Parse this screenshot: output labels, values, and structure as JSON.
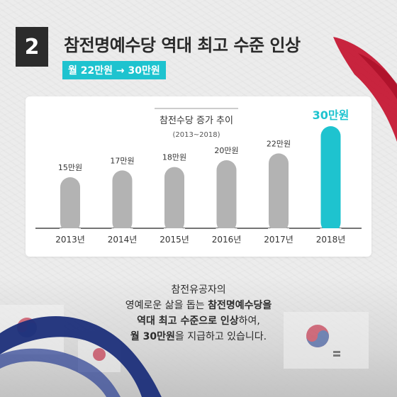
{
  "header": {
    "number": "2",
    "title": "참전명예수당 역대 최고 수준 인상",
    "subtitle": "월 22만원 → 30만원"
  },
  "colors": {
    "accent": "#1ec3cf",
    "bar": "#b3b3b3",
    "dark": "#2b2b2b",
    "red": "#c4122f"
  },
  "chart_data": {
    "type": "bar",
    "title": "참전수당 증가 추이",
    "subtitle": "(2013~2018)",
    "categories": [
      "2013년",
      "2014년",
      "2015년",
      "2016년",
      "2017년",
      "2018년"
    ],
    "values": [
      15,
      17,
      18,
      20,
      22,
      30
    ],
    "value_labels": [
      "15만원",
      "17만원",
      "18만원",
      "20만원",
      "22만원",
      "30만원"
    ],
    "highlight_index": 5,
    "ylim": [
      0,
      30
    ],
    "grid": false,
    "legend": "none"
  },
  "body": {
    "line1": "참전유공자의",
    "line2_normal": "영예로운 삶을 돕는 ",
    "line2_bold": "참전명예수당을",
    "line3_bold": "역대 최고 수준으로 인상",
    "line3_normal": "하여,",
    "line4_bold": "월 30만원",
    "line4_normal": "을 지급하고 있습니다."
  }
}
